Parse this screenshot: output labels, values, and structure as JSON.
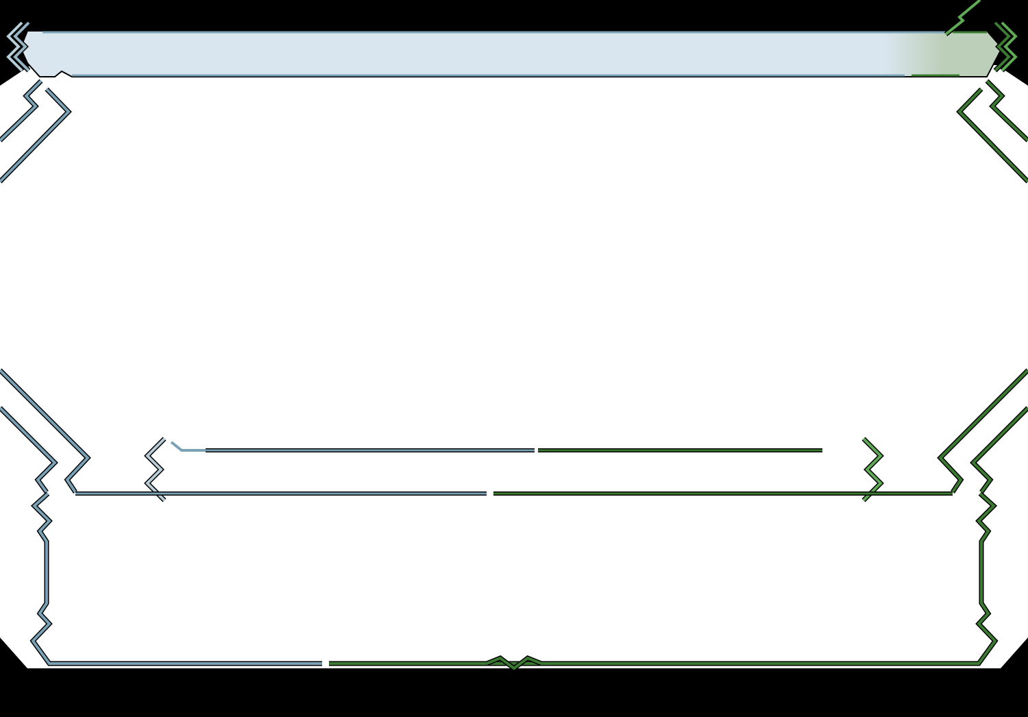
{
  "frame": {
    "colors": {
      "background": "#000000",
      "panel": "#ffffff",
      "header_fill_left": "#dae6ef",
      "header_fill_right": "#bccfb9",
      "blue_line": "#7aa2b6",
      "blue_light": "#b9cdd8",
      "green_line": "#3b7a31",
      "green_light": "#5faa55",
      "outline": "#000000"
    }
  }
}
